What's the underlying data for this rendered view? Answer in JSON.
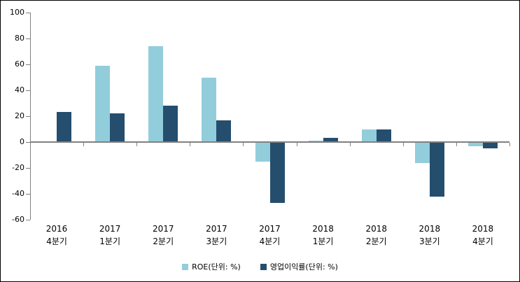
{
  "chart_data": {
    "type": "bar",
    "categories": [
      {
        "line1": "2016",
        "line2": "4분기"
      },
      {
        "line1": "2017",
        "line2": "1분기"
      },
      {
        "line1": "2017",
        "line2": "2분기"
      },
      {
        "line1": "2017",
        "line2": "3분기"
      },
      {
        "line1": "2017",
        "line2": "4분기"
      },
      {
        "line1": "2018",
        "line2": "1분기"
      },
      {
        "line1": "2018",
        "line2": "2분기"
      },
      {
        "line1": "2018",
        "line2": "3분기"
      },
      {
        "line1": "2018",
        "line2": "4분기"
      }
    ],
    "series": [
      {
        "name": "ROE(단위: %)",
        "color": "#92CDDC",
        "values": [
          null,
          59,
          74,
          50,
          -15,
          1,
          10,
          -16,
          -3
        ]
      },
      {
        "name": "영업이익률(단위: %)",
        "color": "#254E6E",
        "values": [
          23,
          22,
          28,
          17,
          -47,
          3,
          10,
          -42,
          -5
        ]
      }
    ],
    "title": "",
    "xlabel": "",
    "ylabel": "",
    "ylim": [
      -60,
      100
    ],
    "ytick_step": 20,
    "ytick_labels": [
      "100",
      "80",
      "60",
      "40",
      "20",
      "0",
      "-20",
      "-40",
      "-60"
    ],
    "grid": false,
    "legend_position": "bottom",
    "colors": {
      "axis": "#808080",
      "text": "#000000",
      "border": "#000000",
      "background": "#FFFFFF"
    }
  }
}
